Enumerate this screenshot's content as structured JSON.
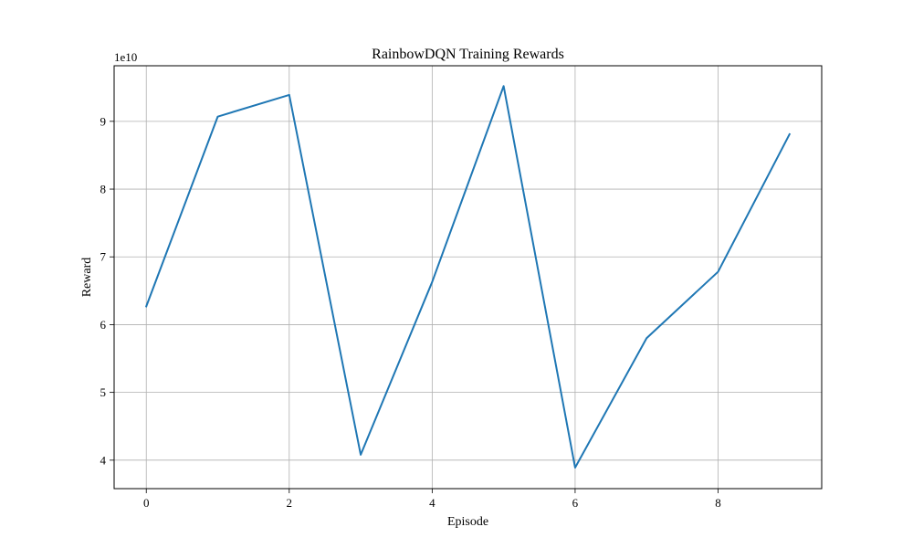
{
  "chart_data": {
    "type": "line",
    "title": "RainbowDQN Training Rewards",
    "xlabel": "Episode",
    "ylabel": "Reward",
    "y_offset_text": "1e10",
    "x": [
      0,
      1,
      2,
      3,
      4,
      5,
      6,
      7,
      8,
      9
    ],
    "series": [
      {
        "values": [
          62700000000,
          90700000000,
          93900000000,
          40800000000,
          66300000000,
          95200000000,
          38900000000,
          58000000000,
          67800000000,
          88100000000
        ],
        "color": "#1f77b4"
      }
    ],
    "xlim": [
      -0.45,
      9.45
    ],
    "ylim": [
      35800000000,
      98200000000
    ],
    "xticks": [
      0,
      2,
      4,
      6,
      8
    ],
    "xtick_labels": [
      "0",
      "2",
      "4",
      "6",
      "8"
    ],
    "yticks": [
      40000000000,
      50000000000,
      60000000000,
      70000000000,
      80000000000,
      90000000000
    ],
    "ytick_labels": [
      "4",
      "5",
      "6",
      "7",
      "8",
      "9"
    ],
    "grid": true,
    "grid_color": "#b0b0b0",
    "legend": false
  }
}
